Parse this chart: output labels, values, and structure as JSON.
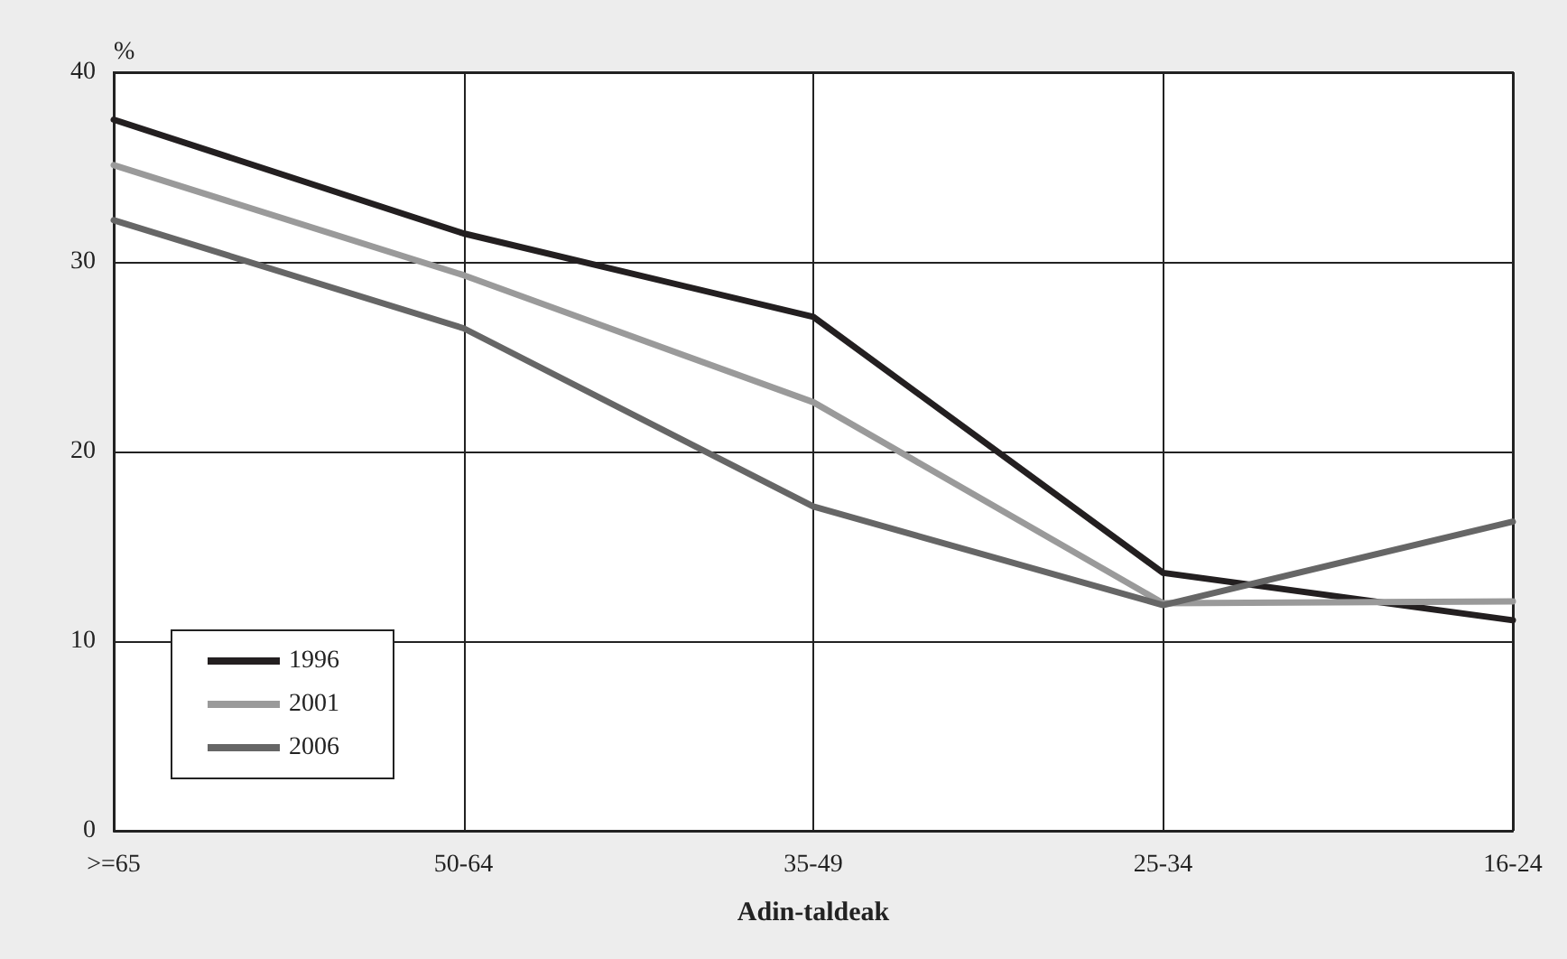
{
  "chart_data": {
    "type": "line",
    "xlabel": "Adin-taldeak",
    "ylabel": "%",
    "categories": [
      ">=65",
      "50-64",
      "35-49",
      "25-34",
      "16-24"
    ],
    "series": [
      {
        "name": "1996",
        "color": "#231f20",
        "values": [
          37.5,
          31.5,
          27.1,
          13.6,
          11.1
        ]
      },
      {
        "name": "2001",
        "color": "#9a9a9a",
        "values": [
          35.1,
          29.3,
          22.6,
          12.0,
          12.1
        ]
      },
      {
        "name": "2006",
        "color": "#666666",
        "values": [
          32.2,
          26.5,
          17.1,
          11.9,
          16.3
        ]
      }
    ],
    "ylim": [
      0,
      40
    ],
    "yticks": [
      0,
      10,
      20,
      30,
      40
    ],
    "grid": true,
    "legend": "bottom left",
    "marker": "none",
    "line_style": "solid"
  }
}
